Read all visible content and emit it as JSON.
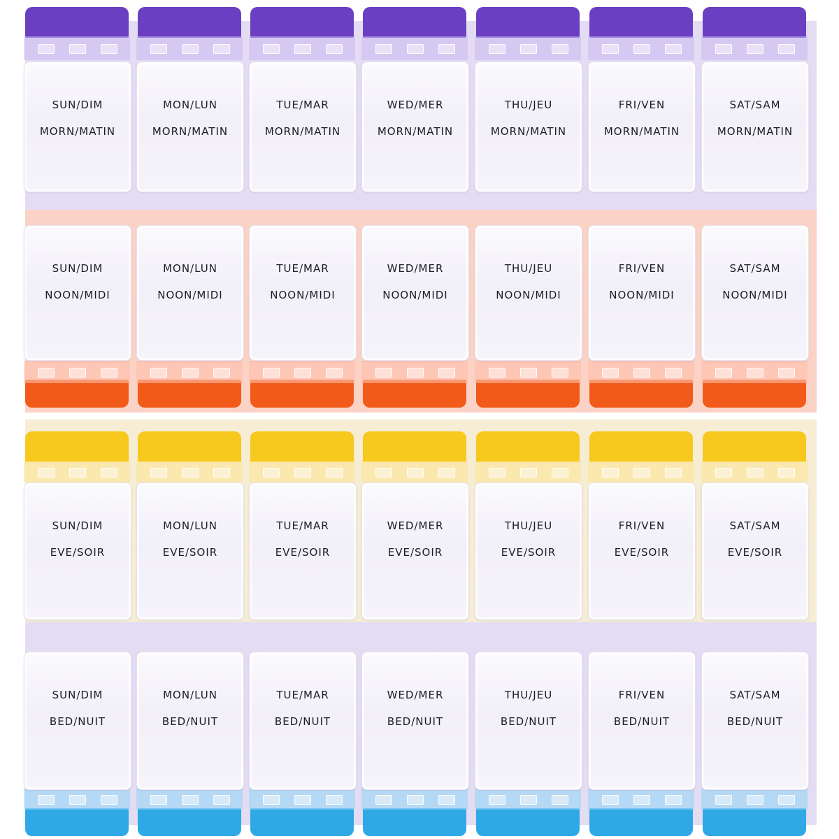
{
  "days": [
    {
      "morn": "SUN/DIM",
      "noon": "SUN/DIM",
      "eve": "SUN/DIM",
      "bed": "SUN/DIM"
    },
    {
      "morn": "MON/LUN",
      "noon": "MON/LUN",
      "eve": "MON/LUN",
      "bed": "MON/LUN"
    },
    {
      "morn": "TUE/MAR",
      "noon": "TUE/MAR",
      "eve": "TUE/MAR",
      "bed": "TUE/MAR"
    },
    {
      "morn": "WED/MER",
      "noon": "WED/MER",
      "eve": "WED/MER",
      "bed": "WED/MER"
    },
    {
      "morn": "THU/JEU",
      "noon": "THU/JEU",
      "eve": "THU/JEU",
      "bed": "THU/JEU"
    },
    {
      "morn": "FRI/VEN",
      "noon": "FRI/VEN",
      "eve": "FRI/VEN",
      "bed": "FRI/VEN"
    },
    {
      "morn": "SAT/SAM",
      "noon": "SAT/SAM",
      "eve": "SAT/SAM",
      "bed": "SAT/SAM"
    }
  ],
  "times": {
    "morn": "MORN/MATIN",
    "noon": "NOON/MIDI",
    "eve": "EVE/SOIR",
    "bed": "BED/NUIT"
  },
  "colors": {
    "morn_tab": "#6a3fc2",
    "noon_tab": "#f25a1a",
    "eve_tab": "#f7c81e",
    "bed_tab": "#2fa9e6",
    "morn_band": "#e4dcf3",
    "noon_band": "#fbd3c6",
    "eve_band": "#f6edd4",
    "bed_band": "#e4dcf3"
  }
}
